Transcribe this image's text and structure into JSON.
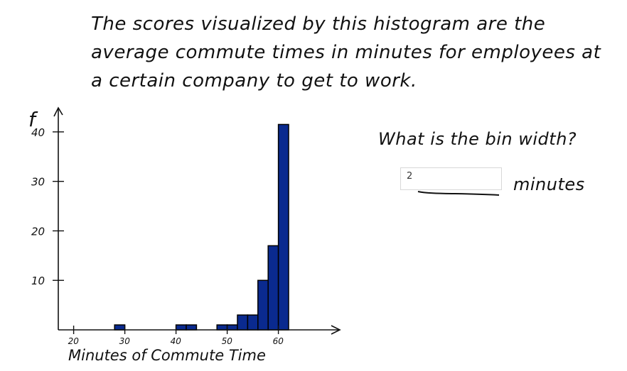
{
  "intro_text": "The scores visualized by this histogram are the\naverage commute times in minutes for employees at\na certain company to get to work.",
  "question": "What is the bin width?",
  "answer": {
    "value": "2",
    "unit": "minutes"
  },
  "chart_data": {
    "type": "bar",
    "ylabel": "f",
    "xlabel": "Minutes of Commute Time",
    "xlim": [
      17,
      72
    ],
    "ylim": [
      0,
      44
    ],
    "x_ticks": [
      20,
      30,
      40,
      50,
      60
    ],
    "y_ticks": [
      10,
      20,
      30,
      40
    ],
    "bin_width": 2,
    "bins": [
      {
        "start": 28,
        "end": 30,
        "value": 1
      },
      {
        "start": 40,
        "end": 42,
        "value": 1
      },
      {
        "start": 42,
        "end": 44,
        "value": 1
      },
      {
        "start": 48,
        "end": 50,
        "value": 1
      },
      {
        "start": 50,
        "end": 52,
        "value": 1
      },
      {
        "start": 52,
        "end": 54,
        "value": 3
      },
      {
        "start": 54,
        "end": 56,
        "value": 3
      },
      {
        "start": 56,
        "end": 58,
        "value": 10
      },
      {
        "start": 58,
        "end": 60,
        "value": 17
      },
      {
        "start": 60,
        "end": 62,
        "value": 41.5
      }
    ],
    "bar_color": "#0a2a8f"
  }
}
